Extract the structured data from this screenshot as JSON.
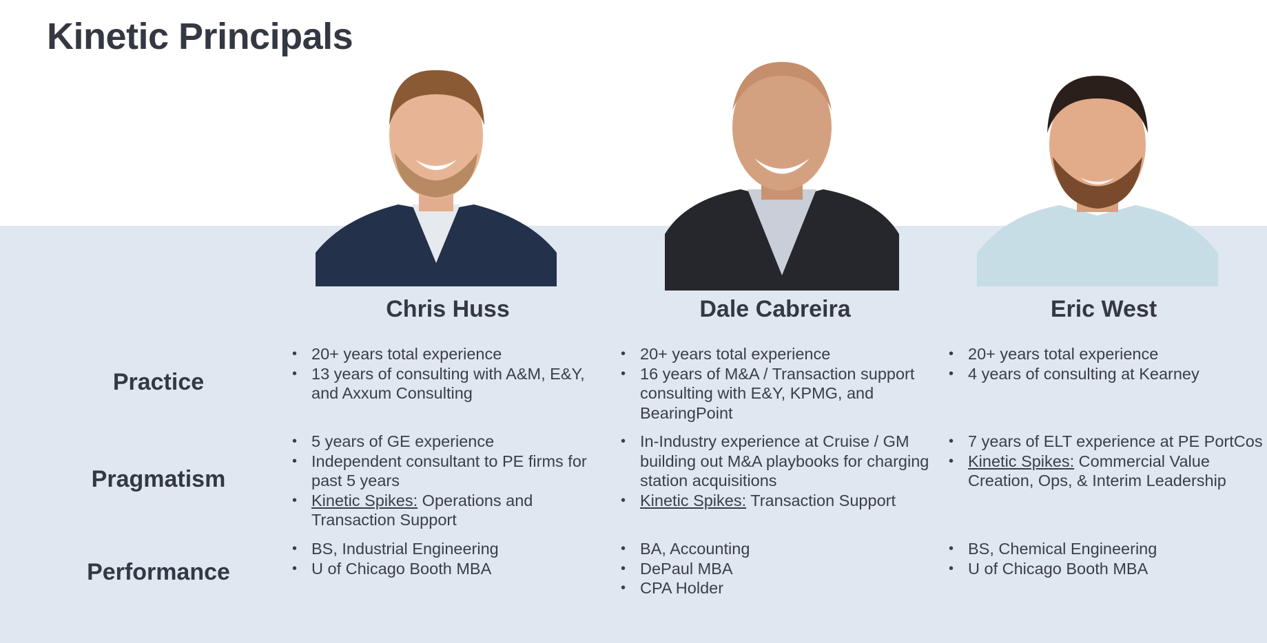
{
  "page": {
    "title": "Kinetic Principals"
  },
  "row_labels": [
    "Practice",
    "Pragmatism",
    "Performance"
  ],
  "principals": [
    {
      "name": "Chris Huss",
      "practice": [
        "20+ years total experience",
        "13 years of consulting with A&M, E&Y, and Axxum Consulting"
      ],
      "pragmatism": [
        "5 years of GE experience",
        "Independent consultant to PE firms for past 5 years"
      ],
      "spikes_label": "Kinetic Spikes:",
      "spikes_text": " Operations and Transaction Support",
      "performance": [
        "BS, Industrial Engineering",
        "U of Chicago Booth MBA"
      ]
    },
    {
      "name": "Dale Cabreira",
      "practice": [
        "20+ years total experience",
        "16 years of M&A / Transaction support consulting with E&Y, KPMG, and BearingPoint"
      ],
      "pragmatism": [
        "In-Industry experience at Cruise / GM building out M&A playbooks for charging station acquisitions"
      ],
      "spikes_label": "Kinetic Spikes:",
      "spikes_text": " Transaction Support",
      "performance": [
        "BA, Accounting",
        "DePaul MBA",
        "CPA Holder"
      ]
    },
    {
      "name": "Eric West",
      "practice": [
        "20+ years total experience",
        "4 years of consulting at Kearney"
      ],
      "pragmatism": [
        "7 years of ELT experience at PE PortCos"
      ],
      "spikes_label": "Kinetic Spikes:",
      "spikes_text": " Commercial Value Creation, Ops, & Interim Leadership",
      "performance": [
        "BS, Chemical Engineering",
        "U of Chicago Booth MBA"
      ]
    }
  ],
  "colors": {
    "band": "#dfe7f1",
    "text": "#343843"
  },
  "icons": [
    "portrait-photo"
  ]
}
